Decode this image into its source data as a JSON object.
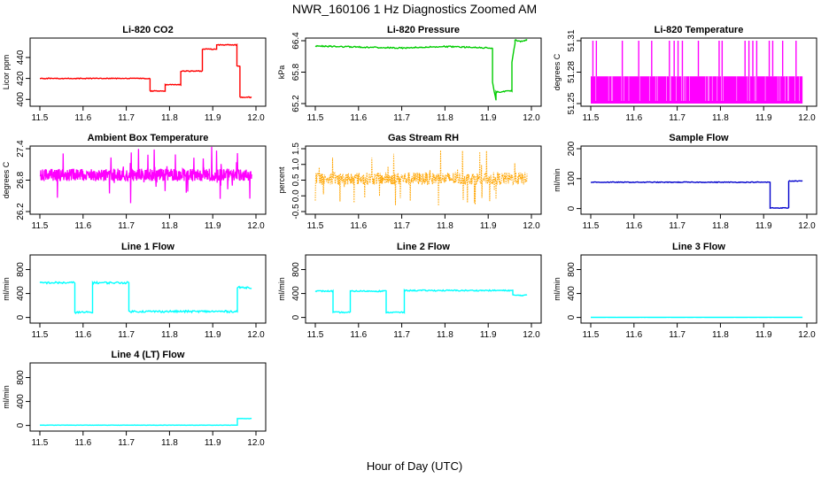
{
  "figure": {
    "title": "NWR_160106  1 Hz Diagnostics Zoomed AM",
    "xlabel": "Hour of Day (UTC)"
  },
  "chart_data": [
    {
      "type": "line",
      "title": "Li-820 CO2",
      "ylabel": "Licor ppm",
      "color": "#ff0000",
      "xlim": [
        11.5,
        12.0
      ],
      "ylim": [
        396,
        456
      ],
      "xticks": [
        "11.5",
        "11.6",
        "11.7",
        "11.8",
        "11.9",
        "12.0"
      ],
      "yticks": [
        {
          "v": 400,
          "label": "400"
        },
        {
          "v": 420,
          "label": "420"
        },
        {
          "v": 440,
          "label": "440"
        }
      ],
      "trace": {
        "kind": "step",
        "x": [
          11.5,
          11.755,
          11.755,
          11.79,
          11.79,
          11.826,
          11.826,
          11.876,
          11.876,
          11.909,
          11.909,
          11.956,
          11.956,
          11.963,
          11.963,
          11.99
        ],
        "y": [
          420,
          420,
          408,
          408,
          414,
          414,
          427,
          427,
          448,
          448,
          452,
          452,
          432,
          432,
          402,
          402
        ],
        "noise": 0.4
      }
    },
    {
      "type": "line",
      "title": "Li-820 Pressure",
      "ylabel": "kPa",
      "color": "#00cc00",
      "xlim": [
        11.5,
        12.0
      ],
      "ylim": [
        65.2,
        66.4
      ],
      "xticks": [
        "11.5",
        "11.6",
        "11.7",
        "11.8",
        "11.9",
        "12.0"
      ],
      "yticks": [
        {
          "v": 65.2,
          "label": "65.2"
        },
        {
          "v": 65.8,
          "label": "65.8"
        },
        {
          "v": 66.4,
          "label": "66.4"
        }
      ],
      "trace": {
        "kind": "step",
        "x": [
          11.5,
          11.7,
          11.8,
          11.91,
          11.91,
          11.918,
          11.918,
          11.955,
          11.955,
          11.962,
          11.962,
          11.975,
          11.99
        ],
        "y": [
          66.3,
          66.26,
          66.29,
          66.26,
          65.6,
          65.26,
          65.42,
          65.44,
          66.0,
          66.35,
          66.42,
          66.38,
          66.42
        ],
        "noise": 0.012
      }
    },
    {
      "type": "band",
      "title": "Li-820 Temperature",
      "ylabel": "degrees C",
      "color": "#ff00ff",
      "xlim": [
        11.5,
        12.0
      ],
      "ylim": [
        51.25,
        51.31
      ],
      "xticks": [
        "11.5",
        "11.6",
        "11.7",
        "11.8",
        "11.9",
        "12.0"
      ],
      "yticks": [
        {
          "v": 51.25,
          "label": "51.25"
        },
        {
          "v": 51.28,
          "label": "51.28"
        },
        {
          "v": 51.31,
          "label": "51.31"
        }
      ],
      "trace": {
        "kind": "band",
        "low": 51.25,
        "high": 51.276,
        "spike_high": 51.31,
        "spikes": [
          11.505,
          11.513,
          11.573,
          11.611,
          11.641,
          11.682,
          11.693,
          11.702,
          11.712,
          11.749,
          11.797,
          11.804,
          11.857,
          11.866,
          11.875,
          11.884,
          11.913,
          11.921,
          11.944,
          11.975
        ]
      }
    },
    {
      "type": "line",
      "title": "Ambient Box Temperature",
      "ylabel": "degrees C",
      "color": "#ff00ff",
      "xlim": [
        11.5,
        12.0
      ],
      "ylim": [
        26.2,
        27.4
      ],
      "xticks": [
        "11.5",
        "11.6",
        "11.7",
        "11.8",
        "11.9",
        "12.0"
      ],
      "yticks": [
        {
          "v": 26.2,
          "label": "26.2"
        },
        {
          "v": 26.8,
          "label": "26.8"
        },
        {
          "v": 27.4,
          "label": "27.4"
        }
      ],
      "trace": {
        "kind": "noise",
        "x0": 11.5,
        "x1": 11.99,
        "n": 700,
        "center": 26.9,
        "amp": 0.12,
        "spike": 0.55
      }
    },
    {
      "type": "scatter",
      "title": "Gas Stream RH",
      "ylabel": "percent",
      "color": "#ffa500",
      "xlim": [
        11.5,
        12.0
      ],
      "ylim": [
        -0.5,
        1.5
      ],
      "xticks": [
        "11.5",
        "11.6",
        "11.7",
        "11.8",
        "11.9",
        "12.0"
      ],
      "yticks": [
        {
          "v": -0.5,
          "label": "-0.5"
        },
        {
          "v": 0,
          "label": "0.0"
        },
        {
          "v": 0.5,
          "label": "0.5"
        },
        {
          "v": 1.0,
          "label": "1.0"
        },
        {
          "v": 1.5,
          "label": "1.5"
        }
      ],
      "trace": {
        "kind": "noise",
        "x0": 11.5,
        "x1": 11.99,
        "n": 600,
        "center": 0.55,
        "amp": 0.2,
        "spike": 0.9
      }
    },
    {
      "type": "line",
      "title": "Sample Flow",
      "ylabel": "ml/min",
      "color": "#0000cc",
      "xlim": [
        11.5,
        12.0
      ],
      "ylim": [
        -10,
        200
      ],
      "xticks": [
        "11.5",
        "11.6",
        "11.7",
        "11.8",
        "11.9",
        "12.0"
      ],
      "yticks": [
        {
          "v": 0,
          "label": "0"
        },
        {
          "v": 100,
          "label": "100"
        },
        {
          "v": 200,
          "label": "200"
        }
      ],
      "trace": {
        "kind": "step",
        "x": [
          11.5,
          11.915,
          11.915,
          11.958,
          11.958,
          11.99
        ],
        "y": [
          88,
          88,
          2,
          2,
          92,
          92
        ],
        "noise": 1.2
      }
    },
    {
      "type": "line",
      "title": "Line 1 Flow",
      "ylabel": "ml/min",
      "color": "#00ffff",
      "xlim": [
        11.5,
        12.0
      ],
      "ylim": [
        -50,
        1000
      ],
      "xticks": [
        "11.5",
        "11.6",
        "11.7",
        "11.8",
        "11.9",
        "12.0"
      ],
      "yticks": [
        {
          "v": 0,
          "label": "0"
        },
        {
          "v": 400,
          "label": "400"
        },
        {
          "v": 800,
          "label": "800"
        }
      ],
      "trace": {
        "kind": "step",
        "x": [
          11.5,
          11.581,
          11.581,
          11.622,
          11.622,
          11.706,
          11.706,
          11.957,
          11.957,
          11.99
        ],
        "y": [
          580,
          580,
          85,
          85,
          580,
          580,
          100,
          100,
          500,
          500
        ],
        "noise": 16
      }
    },
    {
      "type": "line",
      "title": "Line 2 Flow",
      "ylabel": "ml/min",
      "color": "#00ffff",
      "xlim": [
        11.5,
        12.0
      ],
      "ylim": [
        -50,
        1000
      ],
      "xticks": [
        "11.5",
        "11.6",
        "11.7",
        "11.8",
        "11.9",
        "12.0"
      ],
      "yticks": [
        {
          "v": 0,
          "label": "0"
        },
        {
          "v": 400,
          "label": "400"
        },
        {
          "v": 800,
          "label": "800"
        }
      ],
      "trace": {
        "kind": "step",
        "x": [
          11.5,
          11.541,
          11.541,
          11.581,
          11.581,
          11.664,
          11.664,
          11.706,
          11.706,
          11.957,
          11.957,
          11.99
        ],
        "y": [
          440,
          440,
          85,
          85,
          440,
          440,
          85,
          85,
          450,
          450,
          370,
          370
        ],
        "noise": 10
      }
    },
    {
      "type": "line",
      "title": "Line 3 Flow",
      "ylabel": "ml/min",
      "color": "#00ffff",
      "xlim": [
        11.5,
        12.0
      ],
      "ylim": [
        -50,
        1000
      ],
      "xticks": [
        "11.5",
        "11.6",
        "11.7",
        "11.8",
        "11.9",
        "12.0"
      ],
      "yticks": [
        {
          "v": 0,
          "label": "0"
        },
        {
          "v": 400,
          "label": "400"
        },
        {
          "v": 800,
          "label": "800"
        }
      ],
      "trace": {
        "kind": "step",
        "x": [
          11.5,
          11.99
        ],
        "y": [
          2,
          2
        ],
        "noise": 1
      }
    },
    {
      "type": "line",
      "title": "Line 4 (LT) Flow",
      "ylabel": "ml/min",
      "color": "#00ffff",
      "xlim": [
        11.5,
        12.0
      ],
      "ylim": [
        -50,
        1000
      ],
      "xticks": [
        "11.5",
        "11.6",
        "11.7",
        "11.8",
        "11.9",
        "12.0"
      ],
      "yticks": [
        {
          "v": 0,
          "label": "0"
        },
        {
          "v": 400,
          "label": "400"
        },
        {
          "v": 800,
          "label": "800"
        }
      ],
      "trace": {
        "kind": "step",
        "x": [
          11.5,
          11.957,
          11.957,
          11.99
        ],
        "y": [
          5,
          5,
          115,
          115
        ],
        "noise": 2
      }
    }
  ]
}
